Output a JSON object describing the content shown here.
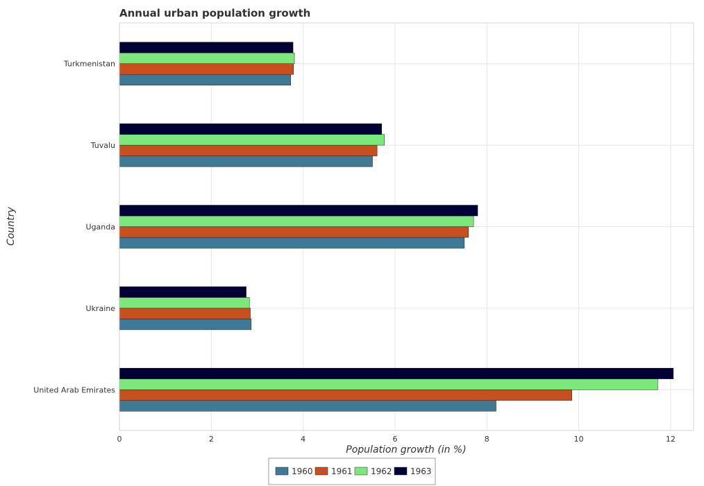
{
  "chart_data": {
    "type": "bar",
    "orientation": "horizontal",
    "title": "Annual urban population growth",
    "xlabel": "Population growth (in %)",
    "ylabel": "Country",
    "xlim": [
      0,
      12.5
    ],
    "xticks": [
      0,
      2,
      4,
      6,
      8,
      10,
      12
    ],
    "grid": true,
    "legend_position": "bottom-center",
    "categories": [
      "Turkmenistan",
      "Tuvalu",
      "Uganda",
      "Ukraine",
      "United Arab Emirates"
    ],
    "series": [
      {
        "name": "1960",
        "color": "#3e7a96",
        "values": [
          3.73,
          5.51,
          7.51,
          2.87,
          8.2
        ]
      },
      {
        "name": "1961",
        "color": "#c8501e",
        "values": [
          3.79,
          5.61,
          7.6,
          2.85,
          9.85
        ]
      },
      {
        "name": "1962",
        "color": "#7ce87c",
        "values": [
          3.81,
          5.77,
          7.71,
          2.83,
          11.72
        ]
      },
      {
        "name": "1963",
        "color": "#000036",
        "values": [
          3.78,
          5.71,
          7.8,
          2.76,
          12.06
        ]
      }
    ]
  }
}
